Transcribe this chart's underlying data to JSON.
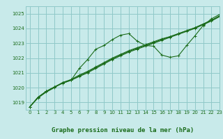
{
  "background_color": "#c8eaea",
  "grid_color": "#90c8c8",
  "line_color": "#1a6b1a",
  "marker_color": "#1a6b1a",
  "xlabel": "Graphe pression niveau de la mer (hPa)",
  "xlabel_fontsize": 6.5,
  "ylim": [
    1018.5,
    1025.5
  ],
  "xlim": [
    -0.5,
    23
  ],
  "yticks": [
    1019,
    1020,
    1021,
    1022,
    1023,
    1024,
    1025
  ],
  "xticks": [
    0,
    1,
    2,
    3,
    4,
    5,
    6,
    7,
    8,
    9,
    10,
    11,
    12,
    13,
    14,
    15,
    16,
    17,
    18,
    19,
    20,
    21,
    22,
    23
  ],
  "series": [
    [
      1018.7,
      1019.3,
      1019.7,
      1020.0,
      1020.35,
      1020.5,
      1021.3,
      1021.9,
      1022.6,
      1022.85,
      1023.25,
      1023.55,
      1023.65,
      1023.15,
      1022.85,
      1022.8,
      1022.2,
      1022.05,
      1022.15,
      1022.85,
      1023.5,
      1024.2,
      1024.65,
      1024.95
    ],
    [
      1018.7,
      1019.35,
      1019.75,
      1020.05,
      1020.35,
      1020.55,
      1020.85,
      1021.1,
      1021.4,
      1021.7,
      1022.0,
      1022.25,
      1022.5,
      1022.7,
      1022.9,
      1023.1,
      1023.3,
      1023.45,
      1023.65,
      1023.85,
      1024.05,
      1024.3,
      1024.55,
      1024.85
    ],
    [
      1018.7,
      1019.35,
      1019.75,
      1020.05,
      1020.3,
      1020.5,
      1020.75,
      1021.0,
      1021.3,
      1021.6,
      1021.9,
      1022.15,
      1022.4,
      1022.6,
      1022.8,
      1023.0,
      1023.2,
      1023.4,
      1023.6,
      1023.8,
      1024.0,
      1024.25,
      1024.5,
      1024.8
    ],
    [
      1018.7,
      1019.35,
      1019.75,
      1020.05,
      1020.3,
      1020.5,
      1020.8,
      1021.05,
      1021.35,
      1021.65,
      1021.95,
      1022.2,
      1022.45,
      1022.65,
      1022.85,
      1023.05,
      1023.25,
      1023.45,
      1023.65,
      1023.85,
      1024.05,
      1024.3,
      1024.55,
      1024.85
    ]
  ]
}
